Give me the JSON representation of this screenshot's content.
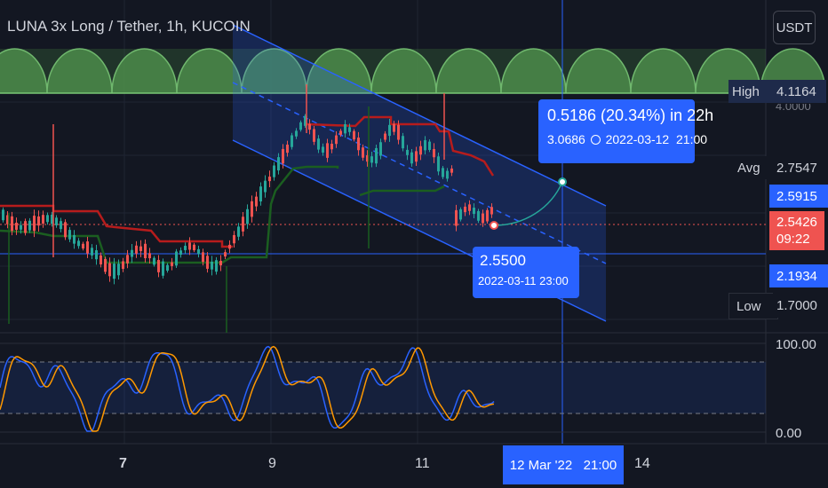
{
  "header": {
    "title": "LUNA 3x Long / Tether, 1h, KUCOIN",
    "currency_button": "USDT"
  },
  "price_scale": {
    "high_label": "High",
    "high_value": "4.1164",
    "partial_tick": "4.0000",
    "avg_label": "Avg",
    "avg_value": "2.7547",
    "price_line_a": "2.5915",
    "last_price": "2.5426",
    "countdown": "09:22",
    "price_line_b": "2.1934",
    "low_label": "Low",
    "low_value": "1.7000"
  },
  "oscillator_scale": {
    "top": "100.00",
    "bottom": "0.00"
  },
  "time_axis": {
    "ticks": [
      "7",
      "9",
      "11",
      "14"
    ],
    "crosshair_label": "12 Mar '22   21:00"
  },
  "projection_callout": {
    "headline": "0.5186 (20.34%) in 22h",
    "price": "3.0686",
    "datetime": "2022-03-12  21:00"
  },
  "start_callout": {
    "price": "2.5500",
    "datetime": "2022-03-11 23:00"
  },
  "colors": {
    "background": "#131722",
    "accent": "#2962ff",
    "bull": "#26a69a",
    "bear": "#ef5350",
    "stop_red": "#b71c1c",
    "stop_green": "#1b5e20",
    "stoch_k": "#2962ff",
    "stoch_d": "#ff9800"
  }
}
